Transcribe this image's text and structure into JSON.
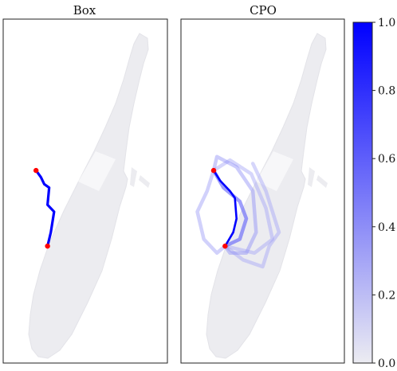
{
  "chart_data": [
    {
      "type": "map",
      "title": "Box",
      "route": {
        "color": "#0000ff",
        "intensity": 1.0,
        "path": [
          [
            0.2,
            0.44
          ],
          [
            0.23,
            0.46
          ],
          [
            0.25,
            0.48
          ],
          [
            0.28,
            0.49
          ],
          [
            0.27,
            0.54
          ],
          [
            0.31,
            0.56
          ],
          [
            0.29,
            0.62
          ],
          [
            0.27,
            0.66
          ]
        ],
        "start": [
          0.2,
          0.44
        ],
        "end": [
          0.27,
          0.66
        ]
      },
      "markers_color": "#ff0000"
    },
    {
      "type": "map",
      "title": "CPO",
      "routes": [
        {
          "intensity": 1.0,
          "path": [
            [
              0.2,
              0.44
            ],
            [
              0.24,
              0.47
            ],
            [
              0.3,
              0.5
            ],
            [
              0.33,
              0.52
            ],
            [
              0.34,
              0.58
            ],
            [
              0.32,
              0.62
            ],
            [
              0.27,
              0.66
            ]
          ]
        },
        {
          "intensity": 0.6,
          "path": [
            [
              0.2,
              0.44
            ],
            [
              0.26,
              0.49
            ],
            [
              0.36,
              0.53
            ],
            [
              0.4,
              0.58
            ],
            [
              0.36,
              0.64
            ],
            [
              0.27,
              0.66
            ]
          ]
        },
        {
          "intensity": 0.4,
          "path": [
            [
              0.2,
              0.44
            ],
            [
              0.22,
              0.4
            ],
            [
              0.34,
              0.43
            ],
            [
              0.44,
              0.5
            ],
            [
              0.46,
              0.62
            ],
            [
              0.4,
              0.68
            ],
            [
              0.3,
              0.68
            ],
            [
              0.27,
              0.66
            ]
          ]
        },
        {
          "intensity": 0.35,
          "path": [
            [
              0.2,
              0.44
            ],
            [
              0.16,
              0.5
            ],
            [
              0.1,
              0.56
            ],
            [
              0.14,
              0.64
            ],
            [
              0.22,
              0.68
            ],
            [
              0.27,
              0.66
            ]
          ]
        },
        {
          "intensity": 0.3,
          "path": [
            [
              0.27,
              0.66
            ],
            [
              0.38,
              0.7
            ],
            [
              0.5,
              0.72
            ],
            [
              0.54,
              0.66
            ],
            [
              0.6,
              0.62
            ],
            [
              0.52,
              0.5
            ],
            [
              0.44,
              0.42
            ]
          ]
        },
        {
          "intensity": 0.3,
          "path": [
            [
              0.2,
              0.44
            ],
            [
              0.3,
              0.41
            ],
            [
              0.43,
              0.45
            ],
            [
              0.52,
              0.55
            ],
            [
              0.56,
              0.64
            ],
            [
              0.45,
              0.68
            ],
            [
              0.27,
              0.66
            ]
          ]
        }
      ],
      "start": [
        0.2,
        0.44
      ],
      "end": [
        0.27,
        0.66
      ],
      "markers_color": "#ff0000"
    },
    {
      "type": "colorbar",
      "range": [
        0.0,
        1.0
      ],
      "ticks": [
        0.0,
        0.2,
        0.4,
        0.6,
        0.8,
        1.0
      ],
      "tick_labels": [
        "0.0",
        "0.2",
        "0.4",
        "0.6",
        "0.8",
        "1.0"
      ],
      "color_low": "#ececf2",
      "color_high": "#0000ff"
    }
  ]
}
